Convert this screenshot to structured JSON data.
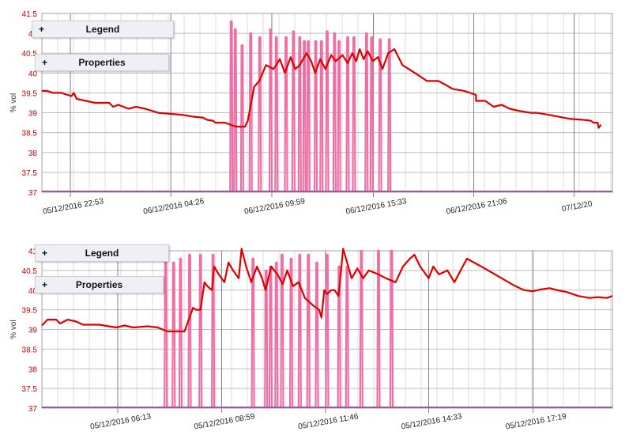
{
  "panels": {
    "legend_label": "Legend",
    "properties_label": "Properties",
    "toggle_symbol": "+"
  },
  "colors": {
    "line": "#dd0000",
    "spikes": "#ee6fa6",
    "grid_major": "#808080",
    "grid_minor": "#dcdcdc",
    "axis_text": "#cc0000",
    "baseline": "#9a5aa0"
  },
  "chart_data": [
    {
      "type": "line",
      "ylabel": "% vol",
      "ylim": [
        37,
        41.5
      ],
      "yticks": [
        "37",
        "37.5",
        "38",
        "38.5",
        "39",
        "39.5",
        "40",
        "40.5",
        "41",
        "41.5"
      ],
      "xlim": [
        0,
        1
      ],
      "xtick_labels": [
        "05/12/2016 22:53",
        "06/12/2016 04:26",
        "06/12/2016 09:59",
        "06/12/2016 15:33",
        "06/12/2016 21:06",
        "07/12/20"
      ],
      "xtick_positions": [
        0.05,
        0.226,
        0.403,
        0.581,
        0.757,
        0.933
      ],
      "series": [
        {
          "name": "concentration",
          "x": [
            0.0,
            0.009,
            0.02,
            0.034,
            0.052,
            0.056,
            0.061,
            0.077,
            0.093,
            0.118,
            0.125,
            0.134,
            0.152,
            0.165,
            0.181,
            0.204,
            0.245,
            0.266,
            0.282,
            0.29,
            0.3,
            0.304,
            0.321,
            0.34,
            0.356,
            0.361,
            0.372,
            0.381,
            0.393,
            0.406,
            0.417,
            0.426,
            0.436,
            0.444,
            0.452,
            0.464,
            0.472,
            0.479,
            0.488,
            0.497,
            0.507,
            0.515,
            0.527,
            0.536,
            0.544,
            0.551,
            0.557,
            0.564,
            0.571,
            0.58,
            0.589,
            0.597,
            0.607,
            0.618,
            0.632,
            0.654,
            0.675,
            0.695,
            0.708,
            0.72,
            0.74,
            0.761,
            0.761,
            0.777,
            0.792,
            0.806,
            0.82,
            0.835,
            0.856,
            0.867,
            0.888,
            0.906,
            0.924,
            0.951,
            0.962,
            0.967,
            0.974,
            0.976,
            0.98
          ],
          "y": [
            39.55,
            39.55,
            39.5,
            39.5,
            39.42,
            39.5,
            39.35,
            39.3,
            39.25,
            39.25,
            39.15,
            39.2,
            39.1,
            39.15,
            39.1,
            39.0,
            38.95,
            38.9,
            38.88,
            38.82,
            38.8,
            38.75,
            38.75,
            38.65,
            38.65,
            38.8,
            39.65,
            39.8,
            40.2,
            40.1,
            40.35,
            40.0,
            40.4,
            40.1,
            40.2,
            40.5,
            40.3,
            40.0,
            40.35,
            40.1,
            40.45,
            40.3,
            40.45,
            40.25,
            40.5,
            40.3,
            40.6,
            40.35,
            40.55,
            40.3,
            40.4,
            40.1,
            40.5,
            40.6,
            40.2,
            40.0,
            39.8,
            39.8,
            39.7,
            39.6,
            39.55,
            39.45,
            39.3,
            39.3,
            39.15,
            39.2,
            39.1,
            39.05,
            39.0,
            39.0,
            38.95,
            38.9,
            38.85,
            38.82,
            38.8,
            38.75,
            38.75,
            38.62,
            38.7
          ]
        },
        {
          "name": "spikes",
          "x": [
            0.332,
            0.339,
            0.351,
            0.366,
            0.382,
            0.401,
            0.411,
            0.428,
            0.441,
            0.452,
            0.46,
            0.467,
            0.48,
            0.49,
            0.5,
            0.513,
            0.521,
            0.536,
            0.547,
            0.569,
            0.578,
            0.593,
            0.609
          ],
          "y": [
            41.3,
            41.1,
            40.7,
            41.0,
            40.9,
            41.1,
            40.9,
            40.9,
            41.05,
            40.9,
            40.8,
            40.8,
            40.8,
            40.8,
            41.05,
            41.0,
            40.8,
            40.9,
            40.9,
            41.0,
            40.9,
            40.85,
            40.85
          ]
        }
      ]
    },
    {
      "type": "line",
      "ylabel": "% vol",
      "ylim": [
        37,
        41
      ],
      "yticks": [
        "37",
        "37.5",
        "38",
        "38.5",
        "39",
        "39.5",
        "40",
        "40.5",
        "41"
      ],
      "xlim": [
        0,
        1
      ],
      "xtick_labels": [
        "05/12/2016 06:13",
        "05/12/2016 08:59",
        "05/12/2016 11:46",
        "05/12/2016 14:33",
        "05/12/2016 17:19"
      ],
      "xtick_positions": [
        0.133,
        0.315,
        0.497,
        0.678,
        0.861
      ],
      "series": [
        {
          "name": "concentration",
          "x": [
            0.0,
            0.01,
            0.025,
            0.032,
            0.045,
            0.06,
            0.072,
            0.1,
            0.13,
            0.145,
            0.16,
            0.185,
            0.203,
            0.22,
            0.238,
            0.25,
            0.265,
            0.27,
            0.278,
            0.285,
            0.29,
            0.298,
            0.302,
            0.31,
            0.32,
            0.327,
            0.335,
            0.345,
            0.35,
            0.358,
            0.367,
            0.377,
            0.386,
            0.392,
            0.402,
            0.413,
            0.422,
            0.43,
            0.44,
            0.45,
            0.461,
            0.476,
            0.486,
            0.49,
            0.495,
            0.5,
            0.507,
            0.513,
            0.52,
            0.528,
            0.535,
            0.543,
            0.553,
            0.563,
            0.573,
            0.59,
            0.603,
            0.62,
            0.633,
            0.645,
            0.653,
            0.663,
            0.678,
            0.686,
            0.696,
            0.711,
            0.723,
            0.745,
            0.77,
            0.8,
            0.83,
            0.845,
            0.86,
            0.875,
            0.89,
            0.903,
            0.92,
            0.94,
            0.96,
            0.975,
            0.99,
            1.0
          ],
          "y": [
            39.1,
            39.25,
            39.25,
            39.15,
            39.25,
            39.2,
            39.12,
            39.12,
            39.05,
            39.1,
            39.05,
            39.08,
            39.05,
            38.95,
            38.95,
            38.95,
            39.55,
            39.5,
            39.5,
            40.2,
            40.1,
            40.0,
            40.6,
            40.4,
            40.2,
            40.7,
            40.5,
            40.3,
            41.05,
            40.6,
            40.2,
            40.6,
            40.3,
            40.0,
            40.6,
            40.4,
            40.15,
            40.5,
            40.1,
            40.2,
            39.8,
            39.6,
            39.5,
            39.3,
            40.0,
            39.9,
            40.0,
            40.0,
            39.85,
            41.05,
            40.7,
            40.3,
            40.55,
            40.3,
            40.5,
            40.4,
            40.3,
            40.2,
            40.6,
            40.8,
            40.9,
            40.6,
            40.3,
            40.6,
            40.4,
            40.5,
            40.2,
            40.8,
            40.6,
            40.35,
            40.1,
            40.0,
            39.97,
            40.02,
            40.05,
            40.0,
            39.95,
            39.85,
            39.8,
            39.82,
            39.8,
            39.85
          ]
        },
        {
          "name": "spikes",
          "x": [
            0.217,
            0.231,
            0.243,
            0.259,
            0.278,
            0.3,
            0.37,
            0.393,
            0.401,
            0.411,
            0.421,
            0.437,
            0.452,
            0.467,
            0.482,
            0.5,
            0.521,
            0.535,
            0.56,
            0.59,
            0.613
          ],
          "y": [
            41.0,
            40.7,
            40.8,
            40.9,
            40.9,
            40.9,
            40.8,
            40.5,
            40.6,
            40.7,
            40.9,
            40.8,
            40.9,
            40.9,
            40.7,
            40.9,
            40.6,
            40.6,
            41.0,
            41.0,
            41.0
          ]
        }
      ]
    }
  ]
}
